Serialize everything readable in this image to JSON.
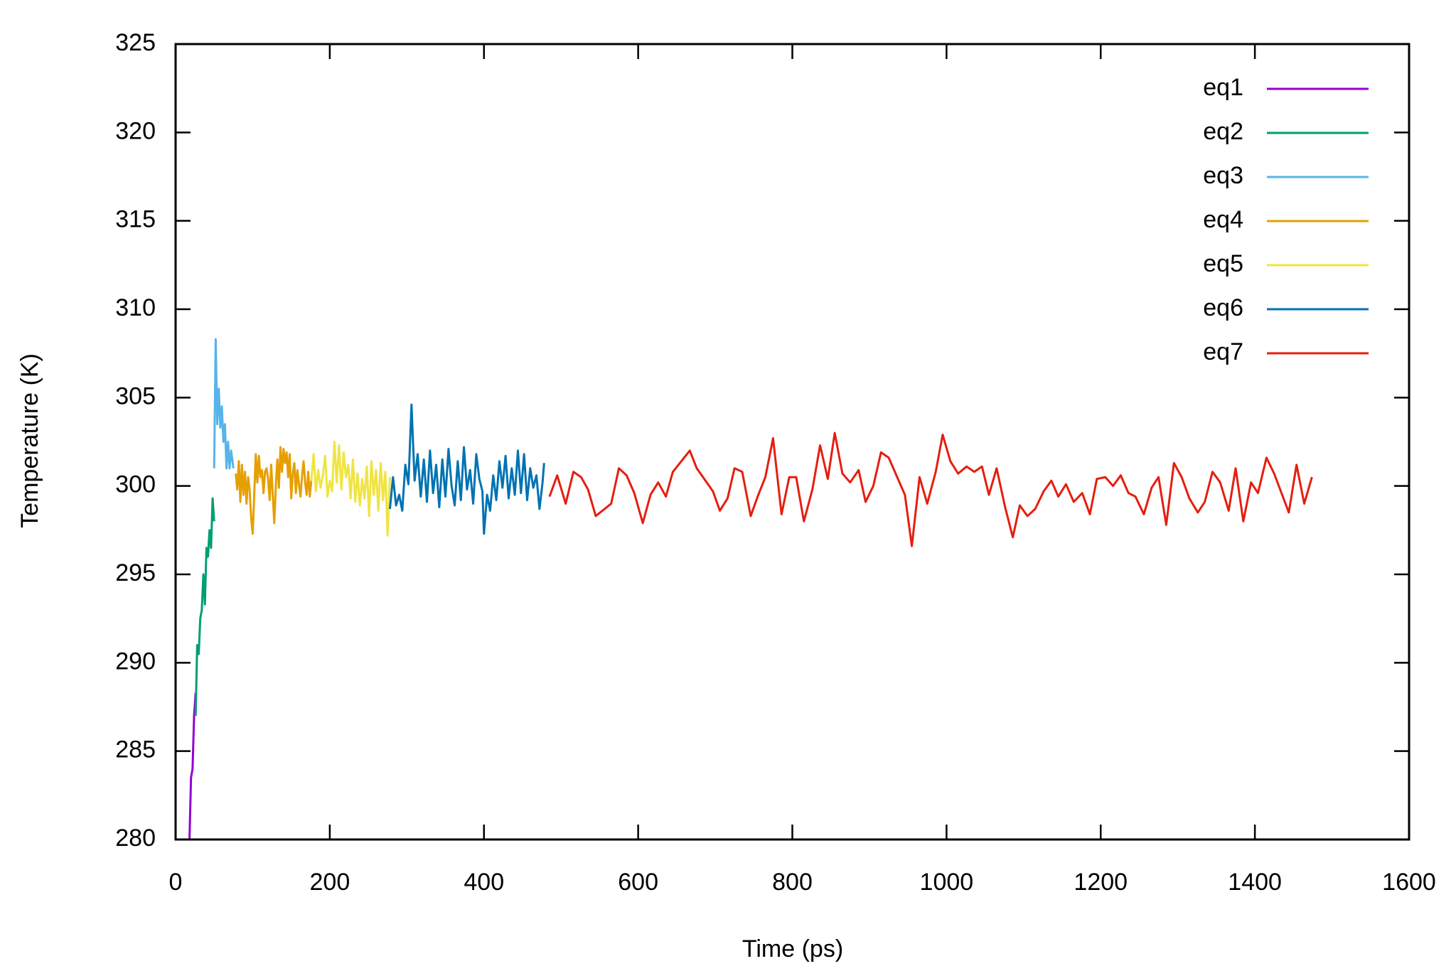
{
  "chart_data": {
    "type": "line",
    "xlabel": "Time (ps)",
    "ylabel": "Temperature (K)",
    "xlim": [
      0,
      1600
    ],
    "ylim": [
      280,
      325
    ],
    "xticks": [
      0,
      200,
      400,
      600,
      800,
      1000,
      1200,
      1400,
      1600
    ],
    "yticks": [
      280,
      285,
      290,
      295,
      300,
      305,
      310,
      315,
      320,
      325
    ],
    "legend": "top right",
    "series": [
      {
        "name": "eq1",
        "color": "#9400d3",
        "x": [
          18,
          20,
          22,
          24,
          26
        ],
        "values": [
          280,
          283.5,
          284,
          287,
          288.3
        ]
      },
      {
        "name": "eq2",
        "color": "#009e73",
        "x": [
          26,
          28,
          30,
          32,
          34,
          36,
          38,
          40,
          42,
          44,
          46,
          48,
          50
        ],
        "values": [
          287,
          291,
          290.5,
          292.5,
          293,
          295,
          293.3,
          296.5,
          296,
          297.5,
          296.5,
          299.3,
          298
        ]
      },
      {
        "name": "eq3",
        "color": "#56b4e9",
        "x": [
          50,
          52,
          54,
          56,
          58,
          60,
          62,
          64,
          66,
          68,
          70,
          72,
          75
        ],
        "values": [
          301,
          308.3,
          303.5,
          305.5,
          303.3,
          304.5,
          302.5,
          303.5,
          301,
          302.5,
          301,
          302,
          301
        ]
      },
      {
        "name": "eq4",
        "color": "#e69f00",
        "x": [
          78,
          80,
          82,
          84,
          86,
          88,
          90,
          92,
          94,
          96,
          98,
          100,
          102,
          104,
          106,
          108,
          110,
          112,
          114,
          116,
          118,
          120,
          122,
          124,
          126,
          128,
          130,
          132,
          134,
          136,
          138,
          140,
          142,
          144,
          146,
          148,
          150,
          152,
          154,
          156,
          158,
          160,
          162,
          164,
          166,
          168,
          170,
          172,
          174,
          176
        ],
        "values": [
          300.7,
          299.8,
          301.4,
          299.1,
          301.2,
          299.5,
          300.8,
          299,
          300.5,
          299.8,
          298.2,
          297.3,
          299.5,
          301.8,
          300.2,
          301.7,
          300.5,
          300.9,
          299.6,
          300.8,
          301,
          300.4,
          299.2,
          301.2,
          299.5,
          297.9,
          300,
          301.5,
          299.9,
          302.2,
          300.8,
          302.1,
          301.3,
          301.9,
          300.5,
          301.8,
          299.3,
          300.7,
          301.3,
          299.6,
          300.9,
          300.1,
          299.4,
          300.6,
          301.4,
          300.2,
          299.5,
          300.8,
          299.4,
          300.3
        ]
      },
      {
        "name": "eq5",
        "color": "#f0e442",
        "x": [
          176,
          179,
          182,
          185,
          188,
          191,
          194,
          197,
          200,
          203,
          206,
          209,
          212,
          215,
          218,
          221,
          224,
          227,
          230,
          233,
          236,
          239,
          242,
          245,
          248,
          251,
          254,
          257,
          260,
          263,
          266,
          269,
          272,
          275,
          278
        ],
        "values": [
          300.3,
          301.8,
          299.7,
          300.9,
          299.9,
          300.6,
          301.7,
          299.4,
          300.3,
          299.7,
          302.5,
          300.2,
          302.3,
          299.8,
          301.9,
          300.5,
          301.2,
          299.3,
          301.5,
          299.1,
          300.7,
          298.9,
          300.4,
          299.3,
          301.1,
          298.3,
          301.4,
          299.5,
          300.9,
          298.6,
          301.3,
          299.2,
          300.8,
          297.2,
          300.5
        ]
      },
      {
        "name": "eq6",
        "color": "#0072b2",
        "x": [
          278,
          282,
          286,
          290,
          294,
          298,
          302,
          306,
          310,
          314,
          318,
          322,
          326,
          330,
          334,
          338,
          342,
          346,
          350,
          354,
          358,
          362,
          366,
          370,
          374,
          378,
          382,
          386,
          390,
          394,
          398,
          400,
          404,
          408,
          412,
          416,
          420,
          424,
          428,
          432,
          436,
          440,
          444,
          448,
          452,
          456,
          460,
          464,
          468,
          472,
          476,
          478
        ],
        "values": [
          298.7,
          300.5,
          298.9,
          299.5,
          298.6,
          301.2,
          300.1,
          304.6,
          300.3,
          301.8,
          299.4,
          301.5,
          299.1,
          302,
          299.6,
          301.2,
          298.8,
          301.5,
          299.4,
          302.1,
          300,
          298.9,
          301.4,
          299.2,
          302.2,
          299.8,
          300.9,
          299,
          301.8,
          300.4,
          299.7,
          297.3,
          299.5,
          298.6,
          300.6,
          299.2,
          301.4,
          299.9,
          301.7,
          299.3,
          301,
          299.5,
          302,
          299.6,
          301.8,
          299.2,
          301,
          299.9,
          300.6,
          298.7,
          300.2,
          301.3
        ]
      },
      {
        "name": "eq7",
        "color": "#e51e10",
        "x": [
          485,
          495,
          506,
          516,
          526,
          535,
          545,
          565,
          575,
          585,
          595,
          606,
          616,
          626,
          636,
          645,
          667,
          676,
          697,
          706,
          716,
          725,
          735,
          746,
          755,
          765,
          775,
          786,
          796,
          805,
          815,
          826,
          836,
          846,
          855,
          865,
          875,
          886,
          895,
          905,
          915,
          925,
          946,
          955,
          965,
          975,
          986,
          995,
          1005,
          1015,
          1026,
          1036,
          1046,
          1055,
          1065,
          1076,
          1086,
          1095,
          1105,
          1115,
          1126,
          1136,
          1145,
          1155,
          1165,
          1176,
          1186,
          1195,
          1206,
          1216,
          1226,
          1236,
          1245,
          1256,
          1266,
          1275,
          1285,
          1295,
          1305,
          1315,
          1326,
          1335,
          1345,
          1355,
          1366,
          1375,
          1385,
          1395,
          1404,
          1415,
          1425,
          1444,
          1454,
          1464,
          1474
        ],
        "values": [
          299.4,
          300.6,
          299.0,
          300.8,
          300.5,
          299.8,
          298.3,
          299.0,
          301.0,
          300.6,
          299.6,
          297.9,
          299.5,
          300.2,
          299.4,
          300.8,
          302.0,
          301.0,
          299.7,
          298.6,
          299.3,
          301.0,
          300.8,
          298.3,
          299.4,
          300.5,
          302.7,
          298.4,
          300.5,
          300.5,
          298.0,
          299.8,
          302.3,
          300.4,
          303.0,
          300.7,
          300.2,
          300.9,
          299.1,
          300.0,
          301.9,
          301.6,
          299.5,
          296.6,
          300.5,
          299.0,
          300.8,
          302.9,
          301.4,
          300.7,
          301.1,
          300.8,
          301.1,
          299.5,
          301.0,
          298.8,
          297.1,
          298.9,
          298.3,
          298.7,
          299.7,
          300.3,
          299.4,
          300.1,
          299.1,
          299.6,
          298.4,
          300.4,
          300.5,
          300.0,
          300.6,
          299.6,
          299.4,
          298.4,
          299.9,
          300.5,
          297.8,
          301.3,
          300.5,
          299.3,
          298.5,
          299.1,
          300.8,
          300.2,
          298.6,
          301.0,
          298.0,
          300.2,
          299.6,
          301.6,
          300.7,
          298.5,
          301.2,
          299.0,
          300.5
        ]
      }
    ]
  }
}
